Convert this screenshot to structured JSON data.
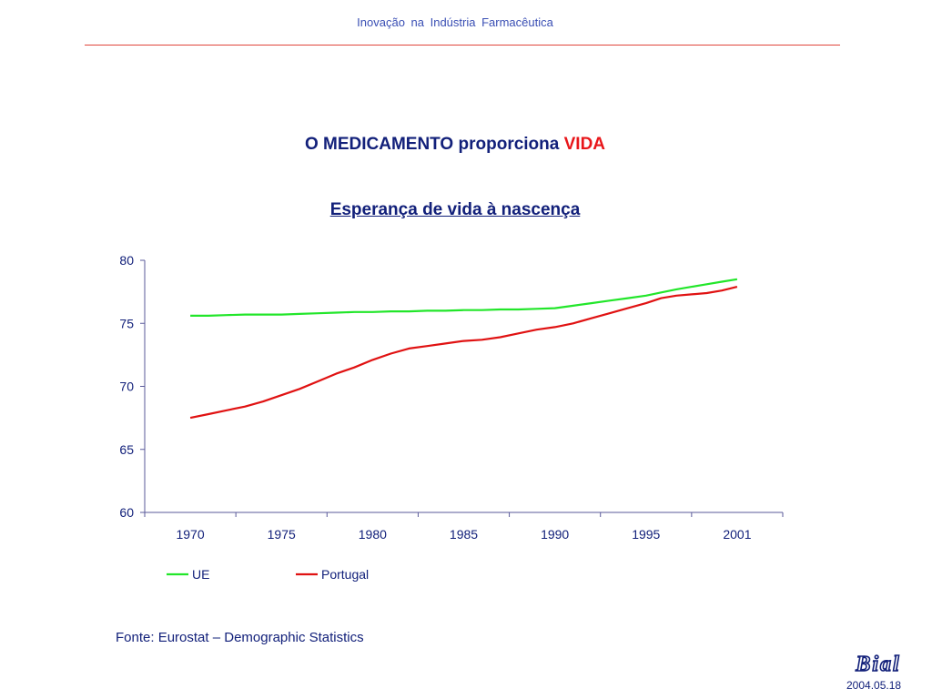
{
  "header": {
    "title": "Inovação  na  Indústria  Farmacêutica"
  },
  "slide": {
    "title_main": "O MEDICAMENTO proporciona ",
    "title_highlight": "VIDA",
    "source": "Fonte: Eurostat – Demographic Statistics",
    "logo_text": "Bial",
    "date": "2004.05.18"
  },
  "colors": {
    "accent_rule": "#e0443a",
    "title_blue": "#12207a",
    "highlight_red": "#e8161a",
    "series_ue": "#22e62a",
    "series_portugal": "#e01212",
    "axis": "#5a5a9a"
  },
  "chart_data": {
    "type": "line",
    "title": "Esperança de vida à nascença",
    "xlabel": "",
    "ylabel": "",
    "categories": [
      "1970",
      "1975",
      "1980",
      "1985",
      "1990",
      "1995",
      "2001"
    ],
    "ylim": [
      60,
      80
    ],
    "yticks": [
      60,
      65,
      70,
      75,
      80
    ],
    "grid": false,
    "legend_position": "bottom",
    "series": [
      {
        "name": "UE",
        "color": "#22e62a",
        "x": [
          1970,
          1971,
          1972,
          1973,
          1974,
          1975,
          1976,
          1977,
          1978,
          1979,
          1980,
          1981,
          1982,
          1983,
          1984,
          1985,
          1986,
          1987,
          1988,
          1989,
          1990,
          1991,
          1992,
          1993,
          1994,
          1995,
          1996,
          1997,
          1998,
          1999,
          2000,
          2001
        ],
        "values": [
          75.6,
          75.6,
          75.65,
          75.7,
          75.7,
          75.7,
          75.75,
          75.8,
          75.85,
          75.9,
          75.9,
          75.95,
          75.95,
          76.0,
          76.0,
          76.05,
          76.05,
          76.1,
          76.1,
          76.15,
          76.2,
          76.4,
          76.6,
          76.8,
          77.0,
          77.2,
          77.45,
          77.7,
          77.9,
          78.1,
          78.3,
          78.5
        ]
      },
      {
        "name": "Portugal",
        "color": "#e01212",
        "x": [
          1970,
          1971,
          1972,
          1973,
          1974,
          1975,
          1976,
          1977,
          1978,
          1979,
          1980,
          1981,
          1982,
          1983,
          1984,
          1985,
          1986,
          1987,
          1988,
          1989,
          1990,
          1991,
          1992,
          1993,
          1994,
          1995,
          1996,
          1997,
          1998,
          1999,
          2000,
          2001
        ],
        "values": [
          67.5,
          67.8,
          68.1,
          68.4,
          68.8,
          69.3,
          69.8,
          70.4,
          71.0,
          71.5,
          72.1,
          72.6,
          73.0,
          73.2,
          73.4,
          73.6,
          73.7,
          73.9,
          74.2,
          74.5,
          74.7,
          75.0,
          75.4,
          75.8,
          76.2,
          76.6,
          77.0,
          77.2,
          77.3,
          77.4,
          77.6,
          77.9
        ]
      }
    ]
  }
}
